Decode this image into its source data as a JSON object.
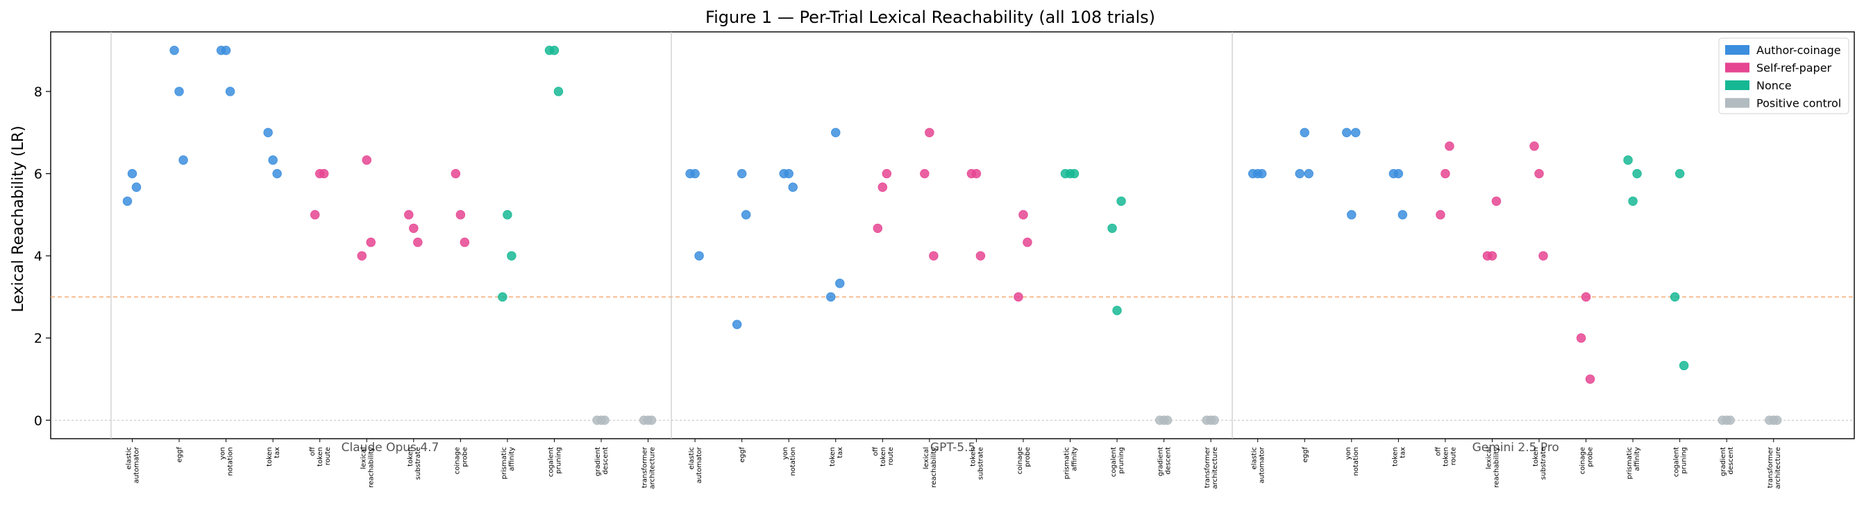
{
  "chart_data": {
    "type": "scatter",
    "title": "Figure 1 — Per-Trial Lexical Reachability (all 108 trials)",
    "ylabel": "Lexical Reachability (LR)",
    "xlabel": "",
    "ylim": [
      -0.45,
      9.45
    ],
    "yticks": [
      0,
      2,
      4,
      6,
      8
    ],
    "threshold": 3,
    "grid": false,
    "legend_position": "top-right",
    "colors": {
      "Author-coinage": "#3b8ede",
      "Self-ref-paper": "#e64592",
      "Nonce": "#16b894",
      "Positive control": "#b1bbc0"
    },
    "legend": [
      "Author-coinage",
      "Self-ref-paper",
      "Nonce",
      "Positive control"
    ],
    "groups": [
      {
        "label": "Claude Opus 4.7",
        "items": [
          {
            "label": [
              "elastic",
              "automator"
            ],
            "category": "Author-coinage",
            "values": [
              5.33,
              6.0,
              5.67
            ]
          },
          {
            "label": [
              "eggf"
            ],
            "category": "Author-coinage",
            "values": [
              9.0,
              8.0,
              6.33
            ]
          },
          {
            "label": [
              "yon",
              "notation"
            ],
            "category": "Author-coinage",
            "values": [
              9.0,
              9.0,
              8.0
            ]
          },
          {
            "label": [
              "token",
              "tax"
            ],
            "category": "Author-coinage",
            "values": [
              7.0,
              6.33,
              6.0
            ]
          },
          {
            "label": [
              "off",
              "token",
              "route"
            ],
            "category": "Self-ref-paper",
            "values": [
              5.0,
              6.0,
              6.0
            ]
          },
          {
            "label": [
              "lexical",
              "reachability"
            ],
            "category": "Self-ref-paper",
            "values": [
              4.0,
              6.33,
              4.33
            ]
          },
          {
            "label": [
              "token",
              "substrate"
            ],
            "category": "Self-ref-paper",
            "values": [
              5.0,
              4.67,
              4.33
            ]
          },
          {
            "label": [
              "coinage",
              "probe"
            ],
            "category": "Self-ref-paper",
            "values": [
              6.0,
              5.0,
              4.33
            ]
          },
          {
            "label": [
              "prismatic",
              "affinity"
            ],
            "category": "Nonce",
            "values": [
              3.0,
              5.0,
              4.0
            ]
          },
          {
            "label": [
              "cogalent",
              "pruning"
            ],
            "category": "Nonce",
            "values": [
              9.0,
              9.0,
              8.0
            ]
          },
          {
            "label": [
              "gradient",
              "descent"
            ],
            "category": "Positive control",
            "values": [
              0,
              0,
              0
            ]
          },
          {
            "label": [
              "transformer",
              "architecture"
            ],
            "category": "Positive control",
            "values": [
              0,
              0,
              0
            ]
          }
        ]
      },
      {
        "label": "GPT-5.5",
        "items": [
          {
            "label": [
              "elastic",
              "automator"
            ],
            "category": "Author-coinage",
            "values": [
              6.0,
              6.0,
              4.0
            ]
          },
          {
            "label": [
              "eggf"
            ],
            "category": "Author-coinage",
            "values": [
              2.33,
              6.0,
              5.0
            ]
          },
          {
            "label": [
              "yon",
              "notation"
            ],
            "category": "Author-coinage",
            "values": [
              6.0,
              6.0,
              5.67
            ]
          },
          {
            "label": [
              "token",
              "tax"
            ],
            "category": "Author-coinage",
            "values": [
              3.0,
              7.0,
              3.33
            ]
          },
          {
            "label": [
              "off",
              "token",
              "route"
            ],
            "category": "Self-ref-paper",
            "values": [
              4.67,
              5.67,
              6.0
            ]
          },
          {
            "label": [
              "lexical",
              "reachability"
            ],
            "category": "Self-ref-paper",
            "values": [
              6.0,
              7.0,
              4.0
            ]
          },
          {
            "label": [
              "token",
              "substrate"
            ],
            "category": "Self-ref-paper",
            "values": [
              6.0,
              6.0,
              4.0
            ]
          },
          {
            "label": [
              "coinage",
              "probe"
            ],
            "category": "Self-ref-paper",
            "values": [
              3.0,
              5.0,
              4.33
            ]
          },
          {
            "label": [
              "prismatic",
              "affinity"
            ],
            "category": "Nonce",
            "values": [
              6.0,
              6.0,
              6.0
            ]
          },
          {
            "label": [
              "cogalent",
              "pruning"
            ],
            "category": "Nonce",
            "values": [
              4.67,
              2.67,
              5.33
            ]
          },
          {
            "label": [
              "gradient",
              "descent"
            ],
            "category": "Positive control",
            "values": [
              0,
              0,
              0
            ]
          },
          {
            "label": [
              "transformer",
              "architecture"
            ],
            "category": "Positive control",
            "values": [
              0,
              0,
              0
            ]
          }
        ]
      },
      {
        "label": "Gemini 2.5 Pro",
        "items": [
          {
            "label": [
              "elastic",
              "automator"
            ],
            "category": "Author-coinage",
            "values": [
              6.0,
              6.0,
              6.0
            ]
          },
          {
            "label": [
              "eggf"
            ],
            "category": "Author-coinage",
            "values": [
              6.0,
              7.0,
              6.0
            ]
          },
          {
            "label": [
              "yon",
              "notation"
            ],
            "category": "Author-coinage",
            "values": [
              7.0,
              5.0,
              7.0
            ]
          },
          {
            "label": [
              "token",
              "tax"
            ],
            "category": "Author-coinage",
            "values": [
              6.0,
              6.0,
              5.0
            ]
          },
          {
            "label": [
              "off",
              "token",
              "route"
            ],
            "category": "Self-ref-paper",
            "values": [
              5.0,
              6.0,
              6.67
            ]
          },
          {
            "label": [
              "lexical",
              "reachability"
            ],
            "category": "Self-ref-paper",
            "values": [
              4.0,
              4.0,
              5.33
            ]
          },
          {
            "label": [
              "token",
              "substrate"
            ],
            "category": "Self-ref-paper",
            "values": [
              6.67,
              6.0,
              4.0
            ]
          },
          {
            "label": [
              "coinage",
              "probe"
            ],
            "category": "Self-ref-paper",
            "values": [
              2.0,
              3.0,
              1.0
            ]
          },
          {
            "label": [
              "prismatic",
              "affinity"
            ],
            "category": "Nonce",
            "values": [
              6.33,
              5.33,
              6.0
            ]
          },
          {
            "label": [
              "cogalent",
              "pruning"
            ],
            "category": "Nonce",
            "values": [
              3.0,
              6.0,
              1.33
            ]
          },
          {
            "label": [
              "gradient",
              "descent"
            ],
            "category": "Positive control",
            "values": [
              0,
              0,
              0
            ]
          },
          {
            "label": [
              "transformer",
              "architecture"
            ],
            "category": "Positive control",
            "values": [
              0,
              0,
              0
            ]
          }
        ]
      }
    ]
  }
}
